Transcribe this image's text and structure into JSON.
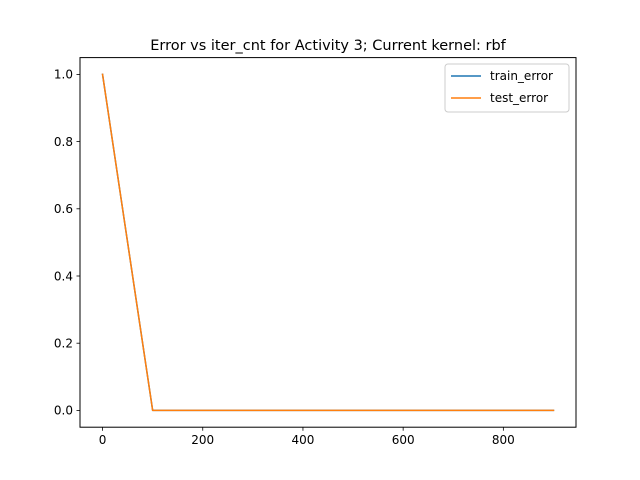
{
  "chart_data": {
    "type": "line",
    "title": "Error vs iter_cnt for Activity 3; Current kernel: rbf",
    "xlabel": "",
    "ylabel": "",
    "xlim": [
      -45,
      945
    ],
    "ylim": [
      -0.05,
      1.05
    ],
    "xticks": [
      0,
      200,
      400,
      600,
      800
    ],
    "xtick_labels": [
      "0",
      "200",
      "400",
      "600",
      "800"
    ],
    "yticks": [
      0.0,
      0.2,
      0.4,
      0.6,
      0.8,
      1.0
    ],
    "ytick_labels": [
      "0.0",
      "0.2",
      "0.4",
      "0.6",
      "0.8",
      "1.0"
    ],
    "grid": false,
    "legend_position": "upper right",
    "x": [
      0,
      100,
      200,
      300,
      400,
      500,
      600,
      700,
      800,
      900
    ],
    "series": [
      {
        "name": "train_error",
        "color": "#1f77b4",
        "values": [
          1.0,
          0.0,
          0.0,
          0.0,
          0.0,
          0.0,
          0.0,
          0.0,
          0.0,
          0.0
        ]
      },
      {
        "name": "test_error",
        "color": "#ff7f0e",
        "values": [
          1.0,
          0.0,
          0.0,
          0.0,
          0.0,
          0.0,
          0.0,
          0.0,
          0.0,
          0.0
        ]
      }
    ]
  }
}
